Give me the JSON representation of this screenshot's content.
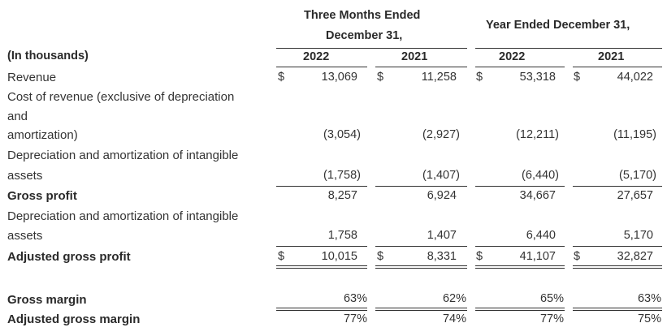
{
  "header": {
    "three_months_line1": "Three Months Ended",
    "three_months_line2": "December 31,",
    "year_ended": "Year Ended December 31,",
    "units": "(In thousands)",
    "years": [
      "2022",
      "2021",
      "2022",
      "2021"
    ]
  },
  "rows": {
    "revenue": {
      "label": "Revenue",
      "values": [
        "13,069",
        "11,258",
        "53,318",
        "44,022"
      ],
      "currency": "$"
    },
    "cost_of_revenue": {
      "label_line1": "Cost of revenue (exclusive of depreciation",
      "label_line2": "and",
      "label_line3": "amortization)",
      "values": [
        "(3,054)",
        "(2,927)",
        "(12,211)",
        "(11,195)"
      ]
    },
    "dep_amort_1": {
      "label_line1": "Depreciation and amortization of intangible",
      "label_line2": "assets",
      "values": [
        "(1,758)",
        "(1,407)",
        "(6,440)",
        "(5,170)"
      ]
    },
    "gross_profit": {
      "label": "Gross profit",
      "values": [
        "8,257",
        "6,924",
        "34,667",
        "27,657"
      ]
    },
    "dep_amort_2": {
      "label_line1": "Depreciation and amortization of intangible",
      "label_line2": "assets",
      "values": [
        "1,758",
        "1,407",
        "6,440",
        "5,170"
      ]
    },
    "adjusted_gross_profit": {
      "label": "Adjusted gross profit",
      "values": [
        "10,015",
        "8,331",
        "41,107",
        "32,827"
      ],
      "currency": "$"
    },
    "gross_margin": {
      "label": "Gross margin",
      "values": [
        "63%",
        "62%",
        "65%",
        "63%"
      ]
    },
    "adjusted_gross_margin": {
      "label": "Adjusted gross margin",
      "values": [
        "77%",
        "74%",
        "77%",
        "75%"
      ]
    }
  }
}
